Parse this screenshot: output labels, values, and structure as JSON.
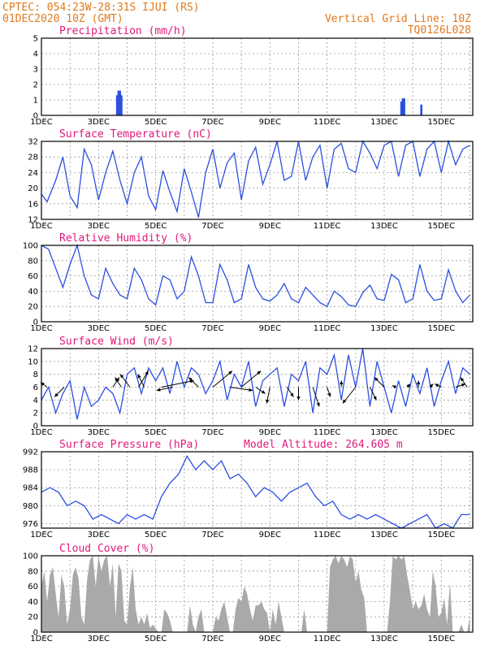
{
  "header": {
    "line1": "CPTEC:   054:23W-28:31S   IJUI (RS)",
    "line2": "01DEC2020 10Z (GMT)",
    "right1": "Vertical Grid Line: 10Z",
    "right2": "TQ0126L028"
  },
  "colors": {
    "header": "#e07a1f",
    "title": "#e0187c",
    "line": "#2b4fe0",
    "cloud": "#a9a9a9"
  },
  "x_ticks": [
    "1DEC",
    "3DEC",
    "5DEC",
    "7DEC",
    "9DEC",
    "11DEC",
    "13DEC",
    "15DEC"
  ],
  "chart_data": [
    {
      "id": "precip",
      "type": "bar",
      "title": "Precipitation (mm/h)",
      "x": [
        2.65,
        2.7,
        2.75,
        2.8,
        12.6,
        12.65,
        12.7,
        13.3
      ],
      "values": [
        1.3,
        1.6,
        1.6,
        1.3,
        0.9,
        1.1,
        1.1,
        0.7
      ],
      "ylim": [
        0,
        5
      ],
      "yticks": [
        0,
        1,
        2,
        3,
        4,
        5
      ]
    },
    {
      "id": "temp",
      "type": "line",
      "title": "Surface Temperature (nC)",
      "x": [
        0,
        0.2,
        0.5,
        0.75,
        1.0,
        1.25,
        1.5,
        1.75,
        2.0,
        2.25,
        2.5,
        2.75,
        3.0,
        3.25,
        3.5,
        3.75,
        4.0,
        4.25,
        4.5,
        4.75,
        5.0,
        5.25,
        5.5,
        5.75,
        6.0,
        6.25,
        6.5,
        6.75,
        7.0,
        7.25,
        7.5,
        7.75,
        8.0,
        8.25,
        8.5,
        8.75,
        9.0,
        9.25,
        9.5,
        9.75,
        10.0,
        10.25,
        10.5,
        10.75,
        11.0,
        11.25,
        11.5,
        11.75,
        12.0,
        12.25,
        12.5,
        12.75,
        13.0,
        13.25,
        13.5,
        13.75,
        14.0,
        14.25,
        14.5,
        14.75,
        15.0
      ],
      "values": [
        18.5,
        16.5,
        22,
        28,
        18,
        15,
        30,
        26,
        17,
        24,
        29.5,
        22,
        16,
        24,
        28,
        18,
        14.5,
        24.5,
        19,
        14,
        25,
        19,
        12.5,
        24,
        30,
        20,
        26.5,
        29,
        17,
        27,
        30.5,
        21,
        26,
        32,
        22,
        23,
        32,
        22,
        28,
        31,
        20,
        30,
        31.5,
        25,
        24,
        32,
        29,
        25,
        31,
        32,
        23,
        31,
        32,
        23,
        30,
        32,
        24,
        32,
        26,
        30,
        31
      ],
      "ylim": [
        12,
        32
      ],
      "yticks": [
        12,
        16,
        20,
        24,
        28,
        32
      ]
    },
    {
      "id": "rh",
      "type": "line",
      "title": "Relative Humidity (%)",
      "x": [
        0,
        0.25,
        0.5,
        0.75,
        1.0,
        1.25,
        1.5,
        1.75,
        2.0,
        2.25,
        2.5,
        2.75,
        3.0,
        3.25,
        3.5,
        3.75,
        4.0,
        4.25,
        4.5,
        4.75,
        5.0,
        5.25,
        5.5,
        5.75,
        6.0,
        6.25,
        6.5,
        6.75,
        7.0,
        7.25,
        7.5,
        7.75,
        8.0,
        8.25,
        8.5,
        8.75,
        9.0,
        9.25,
        9.5,
        9.75,
        10.0,
        10.25,
        10.5,
        10.75,
        11.0,
        11.25,
        11.5,
        11.75,
        12.0,
        12.25,
        12.5,
        12.75,
        13.0,
        13.25,
        13.5,
        13.75,
        14.0,
        14.25,
        14.5,
        14.75,
        15.0
      ],
      "values": [
        100,
        95,
        70,
        45,
        75,
        100,
        60,
        35,
        30,
        70,
        50,
        35,
        30,
        70,
        55,
        30,
        22,
        60,
        55,
        30,
        40,
        85,
        60,
        25,
        25,
        75,
        55,
        25,
        30,
        75,
        45,
        30,
        27,
        35,
        50,
        30,
        25,
        45,
        35,
        25,
        20,
        40,
        33,
        22,
        20,
        38,
        48,
        30,
        28,
        62,
        55,
        25,
        30,
        75,
        40,
        28,
        30,
        68,
        40,
        25,
        35
      ],
      "ylim": [
        0,
        100
      ],
      "yticks": [
        0,
        20,
        40,
        60,
        80,
        100
      ]
    },
    {
      "id": "wind",
      "type": "line",
      "title": "Surface Wind (m/s)",
      "x": [
        0,
        0.25,
        0.5,
        0.75,
        1.0,
        1.25,
        1.5,
        1.75,
        2.0,
        2.25,
        2.5,
        2.75,
        3.0,
        3.25,
        3.5,
        3.75,
        4.0,
        4.25,
        4.5,
        4.75,
        5.0,
        5.25,
        5.5,
        5.75,
        6.0,
        6.25,
        6.5,
        6.75,
        7.0,
        7.25,
        7.5,
        7.75,
        8.0,
        8.25,
        8.5,
        8.75,
        9.0,
        9.25,
        9.5,
        9.75,
        10.0,
        10.25,
        10.5,
        10.75,
        11.0,
        11.25,
        11.5,
        11.75,
        12.0,
        12.25,
        12.5,
        12.75,
        13.0,
        13.25,
        13.5,
        13.75,
        14.0,
        14.25,
        14.5,
        14.75,
        15.0
      ],
      "values": [
        4,
        6,
        2,
        5,
        7,
        1,
        6,
        3,
        4,
        6,
        5,
        2,
        8,
        9,
        5,
        9,
        7,
        9,
        5,
        10,
        6,
        9,
        8,
        5,
        7,
        10,
        4,
        8,
        6,
        10,
        3,
        7,
        8,
        9,
        3,
        8,
        7,
        10,
        2,
        9,
        8,
        11,
        4,
        11,
        6,
        12,
        3,
        10,
        6,
        2,
        7,
        3,
        8,
        5,
        9,
        3,
        7,
        10,
        5,
        9,
        8
      ],
      "arrows": [
        {
          "x": 0.2,
          "u": -2,
          "v": 1.5
        },
        {
          "x": 0.8,
          "u": -3,
          "v": -3
        },
        {
          "x": 2.5,
          "u": 2,
          "v": 3
        },
        {
          "x": 2.8,
          "u": -2,
          "v": 3
        },
        {
          "x": 3.1,
          "u": -3,
          "v": 4
        },
        {
          "x": 3.4,
          "u": 3,
          "v": 5
        },
        {
          "x": 3.6,
          "u": -2,
          "v": 4
        },
        {
          "x": 4.2,
          "u": 10,
          "v": 2
        },
        {
          "x": 4.6,
          "u": -5,
          "v": -1
        },
        {
          "x": 5.5,
          "u": -3,
          "v": 3
        },
        {
          "x": 6.0,
          "u": 6,
          "v": 5
        },
        {
          "x": 6.6,
          "u": 7,
          "v": -1
        },
        {
          "x": 7.0,
          "u": 6,
          "v": 5
        },
        {
          "x": 7.5,
          "u": 3,
          "v": -2
        },
        {
          "x": 8.0,
          "u": -1,
          "v": -5
        },
        {
          "x": 8.6,
          "u": 2,
          "v": -3
        },
        {
          "x": 9.0,
          "u": 0,
          "v": -4
        },
        {
          "x": 9.5,
          "u": 2,
          "v": -6
        },
        {
          "x": 10.0,
          "u": 1,
          "v": -3
        },
        {
          "x": 10.5,
          "u": 0,
          "v": 2
        },
        {
          "x": 11.0,
          "u": -4,
          "v": -5
        },
        {
          "x": 11.5,
          "u": 2,
          "v": -4
        },
        {
          "x": 12.0,
          "u": -3,
          "v": 3
        },
        {
          "x": 12.4,
          "u": -1,
          "v": 0.5
        },
        {
          "x": 12.8,
          "u": 1,
          "v": 1
        },
        {
          "x": 13.2,
          "u": 0,
          "v": 2
        },
        {
          "x": 13.6,
          "u": 1,
          "v": 1
        },
        {
          "x": 14.0,
          "u": -2,
          "v": 1
        },
        {
          "x": 14.5,
          "u": 3,
          "v": 1
        },
        {
          "x": 14.9,
          "u": -2,
          "v": 3
        }
      ],
      "ylim": [
        0,
        12
      ],
      "yticks": [
        0,
        2,
        4,
        6,
        8,
        10,
        12
      ]
    },
    {
      "id": "pres",
      "type": "line",
      "title": "Surface Pressure (hPa)",
      "subtitle": "Model Altitude: 264.605 m",
      "x": [
        0,
        0.3,
        0.6,
        0.9,
        1.2,
        1.5,
        1.8,
        2.1,
        2.4,
        2.7,
        3.0,
        3.3,
        3.6,
        3.9,
        4.2,
        4.5,
        4.8,
        5.1,
        5.4,
        5.7,
        6.0,
        6.3,
        6.6,
        6.9,
        7.2,
        7.5,
        7.8,
        8.1,
        8.4,
        8.7,
        9.0,
        9.3,
        9.6,
        9.9,
        10.2,
        10.5,
        10.8,
        11.1,
        11.4,
        11.7,
        12.0,
        12.3,
        12.6,
        12.9,
        13.2,
        13.5,
        13.8,
        14.1,
        14.4,
        14.7,
        15.0
      ],
      "values": [
        983,
        984,
        983,
        980,
        981,
        980,
        977,
        978,
        977,
        976,
        978,
        977,
        978,
        977,
        982,
        985,
        987,
        991,
        988,
        990,
        988,
        990,
        986,
        987,
        985,
        982,
        984,
        983,
        981,
        983,
        984,
        985,
        982,
        980,
        981,
        978,
        977,
        978,
        977,
        978,
        977,
        976,
        975,
        976,
        977,
        978,
        975,
        976,
        975,
        978,
        978
      ],
      "ylim": [
        975,
        992
      ],
      "yticks": [
        976,
        980,
        984,
        988,
        992
      ]
    },
    {
      "id": "cloud",
      "type": "area",
      "title": "Cloud Cover (%)",
      "x": [
        0,
        0.1,
        0.2,
        0.3,
        0.4,
        0.5,
        0.6,
        0.7,
        0.8,
        0.9,
        1.0,
        1.1,
        1.2,
        1.3,
        1.4,
        1.5,
        1.6,
        1.7,
        1.8,
        1.9,
        2.0,
        2.1,
        2.2,
        2.3,
        2.4,
        2.5,
        2.6,
        2.7,
        2.8,
        2.9,
        3.0,
        3.1,
        3.2,
        3.3,
        3.4,
        3.5,
        3.6,
        3.7,
        3.8,
        3.9,
        4.0,
        4.1,
        4.2,
        4.3,
        4.4,
        4.5,
        4.6,
        4.7,
        4.8,
        4.9,
        5.0,
        5.1,
        5.2,
        5.3,
        5.4,
        5.5,
        5.6,
        5.7,
        5.8,
        5.9,
        6.0,
        6.1,
        6.2,
        6.3,
        6.4,
        6.5,
        6.6,
        6.7,
        6.8,
        6.9,
        7.0,
        7.1,
        7.2,
        7.3,
        7.4,
        7.5,
        7.6,
        7.7,
        7.8,
        7.9,
        8.0,
        8.1,
        8.2,
        8.3,
        8.4,
        8.5,
        8.6,
        8.7,
        8.8,
        8.9,
        9.0,
        9.1,
        9.2,
        9.3,
        9.4,
        9.5,
        9.6,
        9.7,
        9.8,
        9.9,
        10.0,
        10.1,
        10.2,
        10.3,
        10.4,
        10.5,
        10.6,
        10.7,
        10.8,
        10.9,
        11.0,
        11.1,
        11.2,
        11.3,
        11.4,
        11.5,
        11.6,
        11.7,
        11.8,
        11.9,
        12.0,
        12.1,
        12.2,
        12.3,
        12.4,
        12.5,
        12.6,
        12.7,
        12.8,
        12.9,
        13.0,
        13.1,
        13.2,
        13.3,
        13.4,
        13.5,
        13.6,
        13.7,
        13.8,
        13.9,
        14.0,
        14.1,
        14.2,
        14.3,
        14.4,
        14.5,
        14.6,
        14.7,
        14.8,
        14.9,
        15.0
      ],
      "values": [
        60,
        80,
        40,
        75,
        85,
        50,
        20,
        75,
        60,
        10,
        30,
        75,
        85,
        70,
        20,
        10,
        70,
        95,
        100,
        60,
        100,
        80,
        95,
        100,
        60,
        90,
        20,
        90,
        80,
        15,
        10,
        60,
        85,
        30,
        10,
        20,
        10,
        25,
        5,
        10,
        5,
        0,
        0,
        30,
        25,
        15,
        0,
        0,
        0,
        0,
        0,
        0,
        35,
        10,
        0,
        20,
        30,
        0,
        0,
        0,
        0,
        20,
        15,
        30,
        40,
        20,
        0,
        0,
        30,
        45,
        40,
        60,
        50,
        30,
        15,
        35,
        35,
        40,
        30,
        25,
        0,
        30,
        10,
        40,
        20,
        0,
        0,
        0,
        0,
        0,
        0,
        0,
        30,
        0,
        0,
        0,
        0,
        0,
        0,
        0,
        0,
        85,
        95,
        100,
        90,
        100,
        95,
        85,
        100,
        95,
        65,
        80,
        55,
        45,
        0,
        0,
        0,
        0,
        0,
        0,
        0,
        0,
        40,
        100,
        95,
        100,
        95,
        100,
        75,
        55,
        30,
        40,
        30,
        35,
        50,
        30,
        20,
        80,
        60,
        20,
        25,
        45,
        10,
        65,
        0,
        0,
        0,
        10,
        0,
        0,
        20
      ],
      "ylim": [
        0,
        100
      ],
      "yticks": [
        0,
        20,
        40,
        60,
        80,
        100
      ]
    }
  ]
}
